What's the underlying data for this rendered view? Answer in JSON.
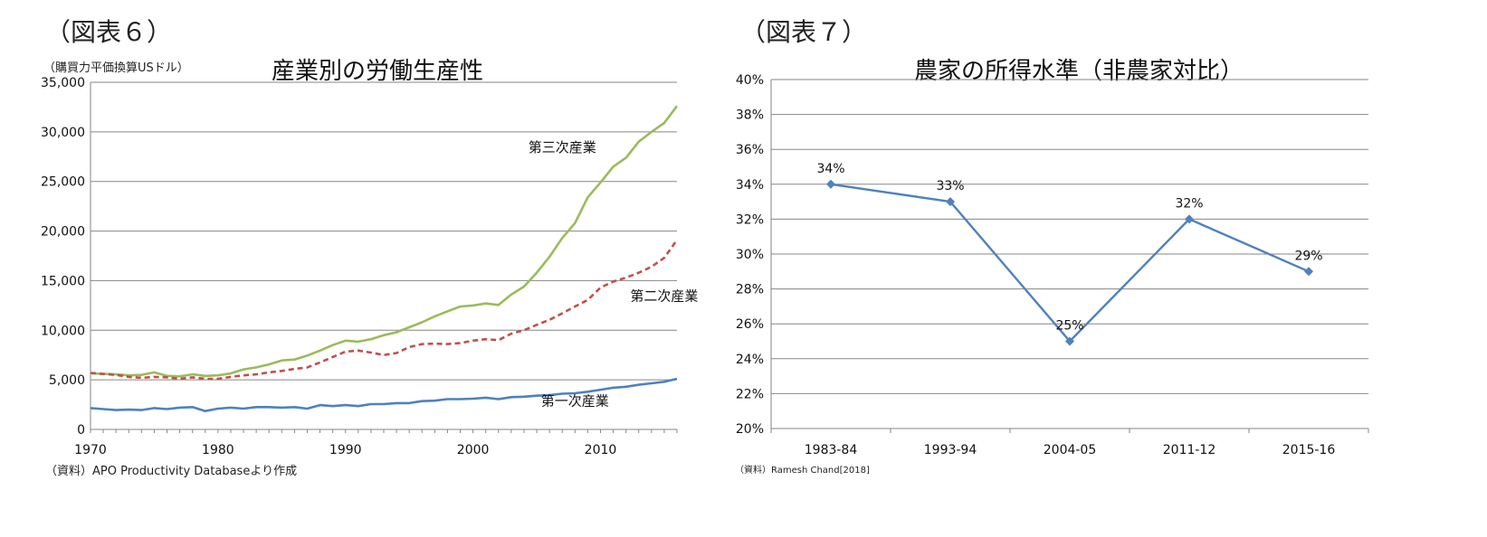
{
  "chart_data": [
    {
      "figure_label": "（図表６）",
      "type": "line",
      "title": "産業別の労働生産性",
      "ylabel": "（購買力平価換算USドル）",
      "source": "（資料）APO Productivity Databaseより作成",
      "xlim": [
        1970,
        2016
      ],
      "ylim": [
        0,
        35000
      ],
      "x_ticks": [
        1970,
        1980,
        1990,
        2000,
        2010
      ],
      "y_ticks": [
        0,
        5000,
        10000,
        15000,
        20000,
        25000,
        30000,
        35000
      ],
      "y_tick_labels": [
        "0",
        "5,000",
        "10,000",
        "15,000",
        "20,000",
        "25,000",
        "30,000",
        "35,000"
      ],
      "grid": true,
      "x": [
        1970,
        1971,
        1972,
        1973,
        1974,
        1975,
        1976,
        1977,
        1978,
        1979,
        1980,
        1981,
        1982,
        1983,
        1984,
        1985,
        1986,
        1987,
        1988,
        1989,
        1990,
        1991,
        1992,
        1993,
        1994,
        1995,
        1996,
        1997,
        1998,
        1999,
        2000,
        2001,
        2002,
        2003,
        2004,
        2005,
        2006,
        2007,
        2008,
        2009,
        2010,
        2011,
        2012,
        2013,
        2014,
        2015,
        2016
      ],
      "series": [
        {
          "name": "第三次産業",
          "color": "#9bbb59",
          "style": "solid",
          "values": [
            5650,
            5600,
            5550,
            5450,
            5500,
            5750,
            5400,
            5350,
            5550,
            5400,
            5450,
            5650,
            6050,
            6250,
            6550,
            6950,
            7050,
            7450,
            7950,
            8500,
            8950,
            8850,
            9100,
            9500,
            9800,
            10300,
            10800,
            11400,
            11900,
            12400,
            12500,
            12700,
            12550,
            13600,
            14400,
            15800,
            17400,
            19300,
            20800,
            23400,
            24900,
            26500,
            27400,
            29000,
            30000,
            30900,
            32600
          ],
          "label_x": 2007,
          "label_y": 28000
        },
        {
          "name": "第二次産業",
          "color": "#c0504d",
          "style": "dashed",
          "values": [
            5700,
            5600,
            5500,
            5300,
            5200,
            5300,
            5250,
            5100,
            5250,
            5100,
            5100,
            5300,
            5450,
            5550,
            5750,
            5900,
            6100,
            6250,
            6750,
            7300,
            7850,
            7950,
            7750,
            7500,
            7700,
            8300,
            8600,
            8650,
            8600,
            8700,
            8950,
            9100,
            9000,
            9650,
            10000,
            10550,
            11050,
            11700,
            12400,
            13050,
            14300,
            14900,
            15300,
            15800,
            16400,
            17300,
            19100
          ],
          "label_x": 2015,
          "label_y": 13000
        },
        {
          "name": "第一次産業",
          "color": "#4f81bd",
          "style": "solid",
          "values": [
            2150,
            2050,
            1950,
            2000,
            1950,
            2150,
            2050,
            2200,
            2250,
            1850,
            2100,
            2200,
            2100,
            2250,
            2250,
            2200,
            2250,
            2100,
            2450,
            2350,
            2450,
            2350,
            2550,
            2550,
            2650,
            2650,
            2850,
            2900,
            3050,
            3050,
            3100,
            3200,
            3050,
            3250,
            3300,
            3400,
            3450,
            3600,
            3650,
            3800,
            4000,
            4200,
            4300,
            4500,
            4650,
            4800,
            5100
          ],
          "label_x": 2008,
          "label_y": 2400
        }
      ]
    },
    {
      "figure_label": "（図表７）",
      "type": "line",
      "title": "農家の所得水準（非農家対比）",
      "source": "（資料）Ramesh Chand[2018]",
      "categories": [
        "1983-84",
        "1993-94",
        "2004-05",
        "2011-12",
        "2015-16"
      ],
      "ylim": [
        20,
        40
      ],
      "y_ticks": [
        20,
        22,
        24,
        26,
        28,
        30,
        32,
        34,
        36,
        38,
        40
      ],
      "y_tick_labels": [
        "20%",
        "22%",
        "24%",
        "26%",
        "28%",
        "30%",
        "32%",
        "34%",
        "36%",
        "38%",
        "40%"
      ],
      "grid": true,
      "series": [
        {
          "color": "#4f81bd",
          "marker": "diamond",
          "values": [
            34,
            33,
            25,
            32,
            29
          ],
          "data_labels": [
            "34%",
            "33%",
            "25%",
            "32%",
            "29%"
          ]
        }
      ]
    }
  ]
}
